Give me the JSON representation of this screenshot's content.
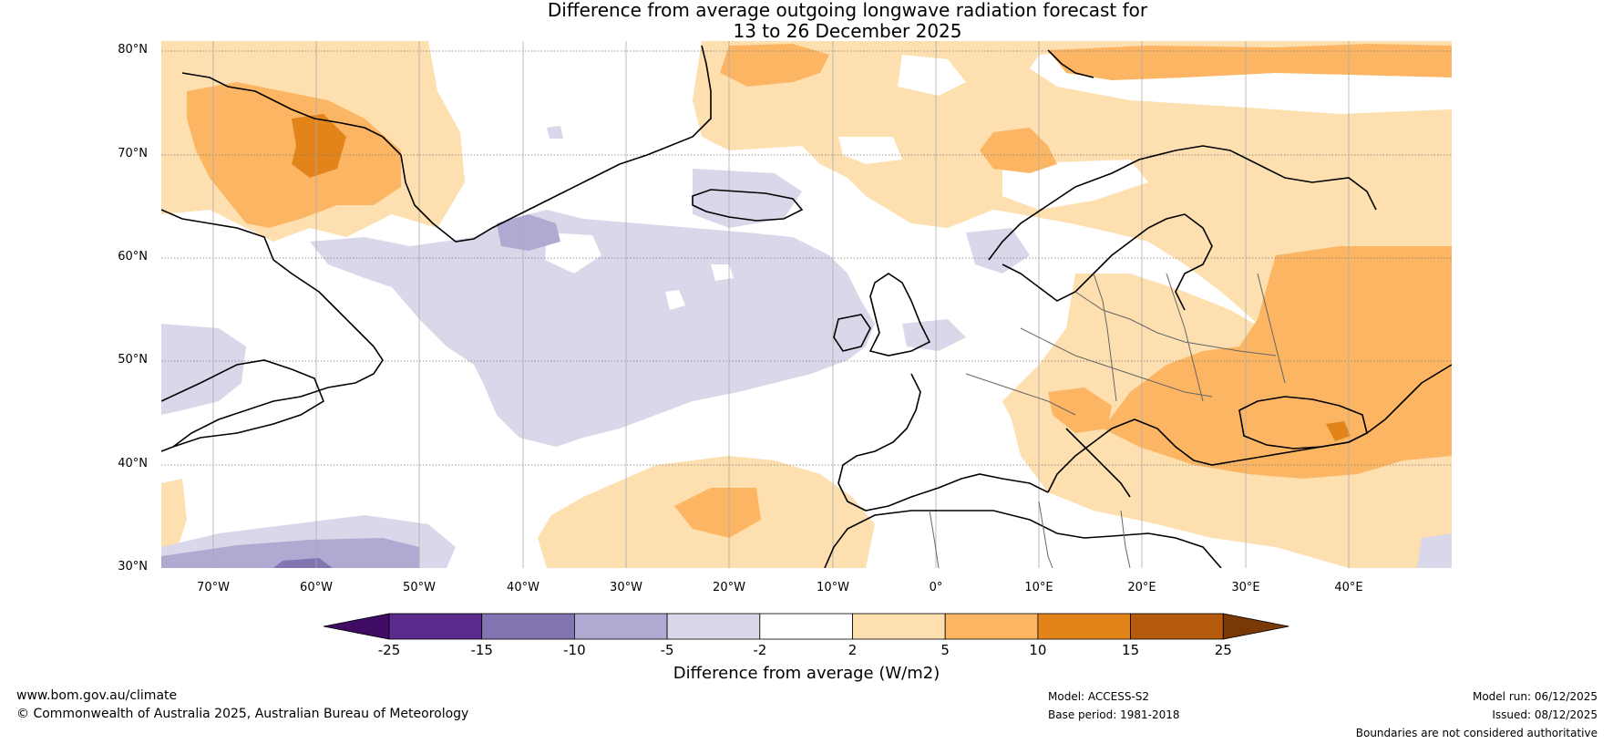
{
  "title": {
    "line1": "Difference from average outgoing longwave radiation forecast for",
    "line2": "13 to 26 December 2025"
  },
  "map": {
    "lat_labels": [
      "80°N",
      "70°N",
      "60°N",
      "50°N",
      "40°N",
      "30°N"
    ],
    "lon_labels": [
      "70°W",
      "60°W",
      "50°W",
      "40°W",
      "30°W",
      "20°W",
      "10°W",
      "0°",
      "10°E",
      "20°E",
      "30°E",
      "40°E"
    ],
    "extent": {
      "lon_min": -75,
      "lon_max": 50,
      "lat_min": 30,
      "lat_max": 81
    }
  },
  "colorbar": {
    "ticks": [
      "-25",
      "-15",
      "-10",
      "-5",
      "-2",
      "2",
      "5",
      "10",
      "15",
      "25"
    ],
    "colors": [
      "#3f0b63",
      "#5a2a8c",
      "#8275b1",
      "#b0a9d2",
      "#d8d8ea",
      "#ffffff",
      "#fddfb0",
      "#fcb663",
      "#e2841a",
      "#b45a0a",
      "#7a3805"
    ],
    "label": "Difference from average (W/m2)"
  },
  "footer": {
    "website": "www.bom.gov.au/climate",
    "copyright": "© Commonwealth of Australia 2025, Australian Bureau of Meteorology",
    "model": "Model: ACCESS-S2",
    "base_period": "Base period: 1981-2018",
    "model_run": "Model run: 06/12/2025",
    "issued": "Issued: 08/12/2025",
    "disclaimer": "Boundaries are not considered authoritative"
  }
}
